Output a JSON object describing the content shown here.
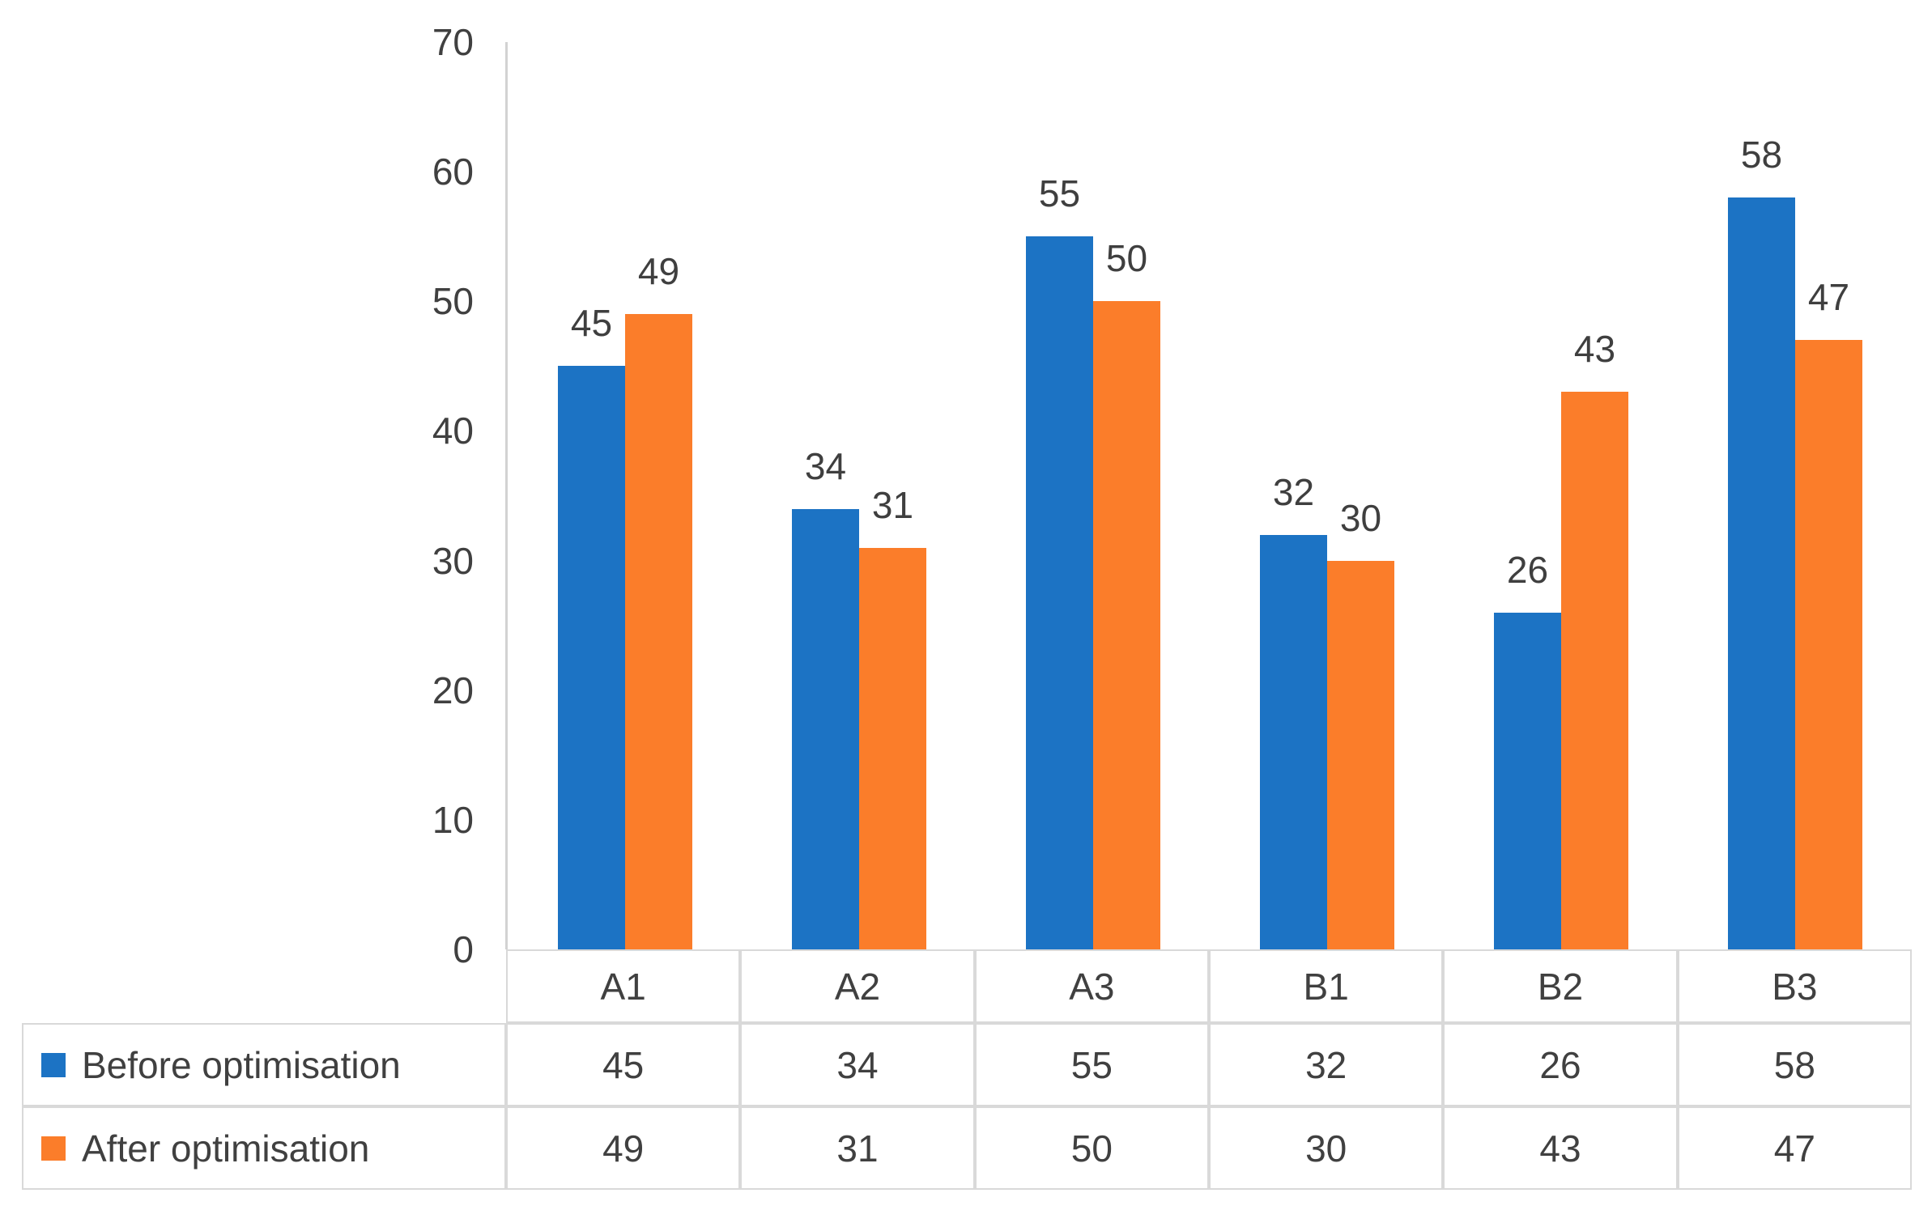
{
  "chart_data": {
    "type": "bar",
    "title": "",
    "xlabel": "",
    "ylabel": "",
    "categories": [
      "A1",
      "A2",
      "A3",
      "B1",
      "B2",
      "B3"
    ],
    "series": [
      {
        "name": "Before optimisation",
        "color": "#1c73c4",
        "values": [
          45,
          34,
          55,
          32,
          26,
          58
        ]
      },
      {
        "name": "After optimisation",
        "color": "#fb7d2a",
        "values": [
          49,
          31,
          50,
          30,
          43,
          47
        ]
      }
    ],
    "ylim": [
      0,
      70
    ],
    "yticks": [
      0,
      10,
      20,
      30,
      40,
      50,
      60,
      70
    ],
    "grid": false,
    "data_labels": true,
    "legend_position": "data-table-left-column"
  },
  "colors": {
    "background": "#ffffff",
    "axis_line": "#d2d2d2",
    "table_border": "#d9d9d9",
    "text": "#404040"
  }
}
